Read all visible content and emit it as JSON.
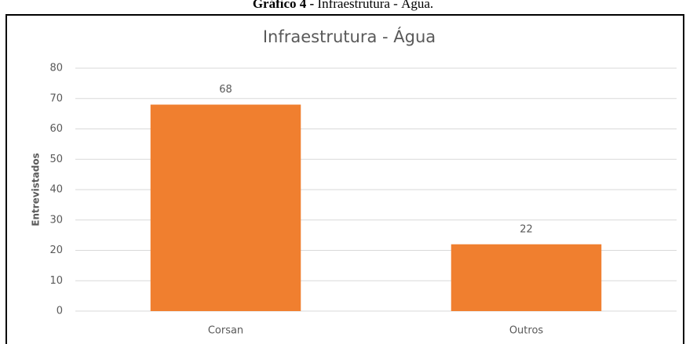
{
  "caption_label": "Gráfico 4 -",
  "caption_text": "Infraestrutura - Água.",
  "chart_data": {
    "type": "bar",
    "title": "Infraestrutura - Água",
    "y_label": "Entrevistados",
    "categories": [
      "Corsan",
      "Outros"
    ],
    "values": [
      68,
      22
    ],
    "color": "#f07f2f",
    "ylim": [
      0,
      80
    ],
    "yticks": [
      0,
      10,
      20,
      30,
      40,
      50,
      60,
      70,
      80
    ],
    "grid": true
  }
}
